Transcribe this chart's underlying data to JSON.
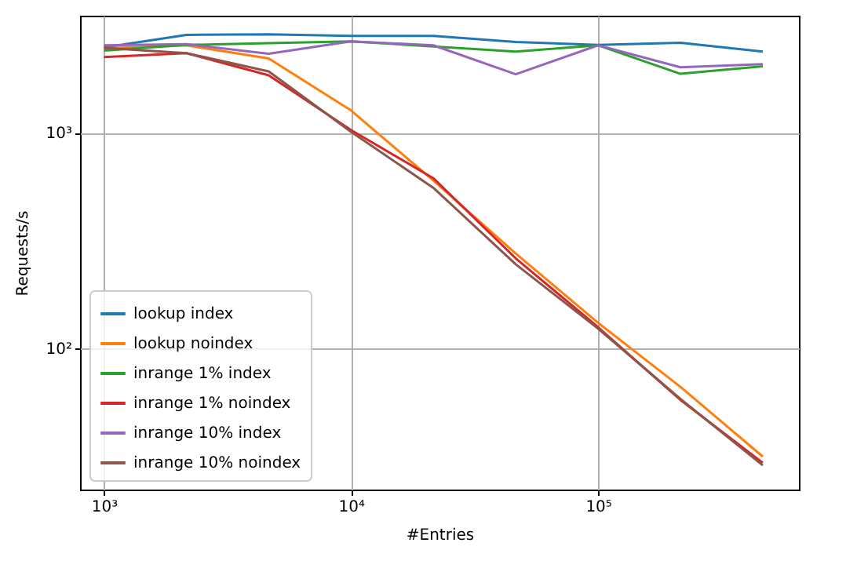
{
  "chart_data": {
    "type": "line",
    "xlabel": "#Entries",
    "ylabel": "Requests/s",
    "log": "xy",
    "grid": true,
    "legend": "bottom left",
    "x": [
      1000,
      2154,
      4642,
      10000,
      21544,
      46416,
      100000,
      215443,
      464159
    ],
    "xlim": [
      800,
      650000
    ],
    "ylim": [
      22,
      3500
    ],
    "xticks": [
      {
        "value": 1000,
        "label": "10³"
      },
      {
        "value": 10000,
        "label": "10⁴"
      },
      {
        "value": 100000,
        "label": "10⁵"
      }
    ],
    "yticks": [
      {
        "value": 100,
        "label": "10²"
      },
      {
        "value": 1000,
        "label": "10³"
      }
    ],
    "series": [
      {
        "name": "lookup index",
        "color": "#1f77b4",
        "values": [
          2490,
          2850,
          2870,
          2820,
          2820,
          2640,
          2560,
          2620,
          2385
        ]
      },
      {
        "name": "lookup noindex",
        "color": "#ff7f0e",
        "values": [
          2470,
          2550,
          2215,
          1270,
          600,
          275,
          131,
          66,
          31.3
        ]
      },
      {
        "name": "inrange 1% index",
        "color": "#2ca02c",
        "values": [
          2410,
          2560,
          2610,
          2660,
          2520,
          2385,
          2550,
          1880,
          2035
        ]
      },
      {
        "name": "inrange 1% noindex",
        "color": "#d62728",
        "values": [
          2250,
          2345,
          1850,
          1030,
          615,
          261,
          125,
          57.4,
          29.3
        ]
      },
      {
        "name": "inrange 10% index",
        "color": "#9467bd",
        "values": [
          2550,
          2580,
          2330,
          2660,
          2550,
          1870,
          2550,
          2015,
          2085
        ]
      },
      {
        "name": "inrange 10% noindex",
        "color": "#8c564b",
        "values": [
          2480,
          2345,
          1930,
          1010,
          555,
          245,
          123,
          58,
          28.5
        ]
      }
    ]
  }
}
